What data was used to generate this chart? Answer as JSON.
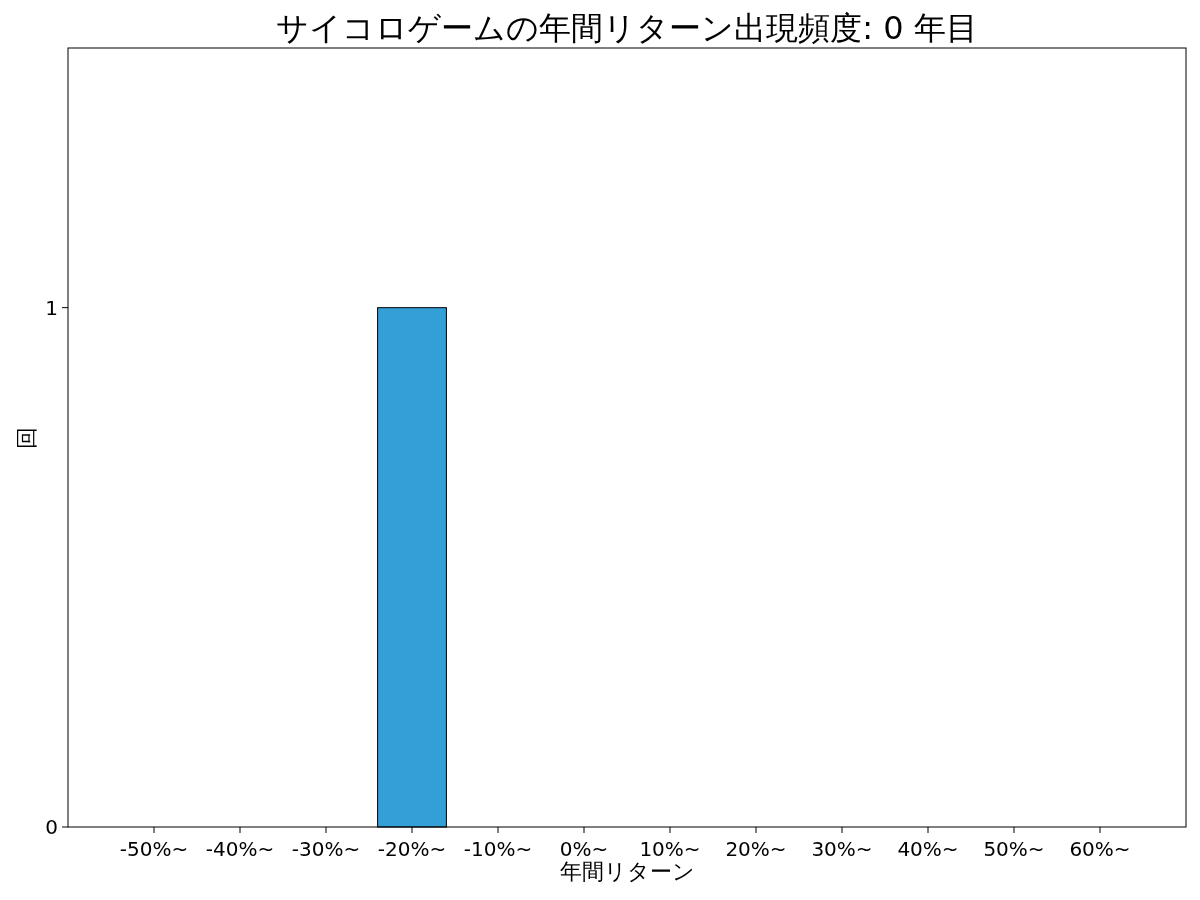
{
  "chart_data": {
    "type": "bar",
    "title": "サイコロゲームの年間リターン出現頻度: 0 年目",
    "xlabel": "年間リターン",
    "ylabel": "回",
    "categories": [
      "-50%~",
      "-40%~",
      "-30%~",
      "-20%~",
      "-10%~",
      "0%~",
      "10%~",
      "20%~",
      "30%~",
      "40%~",
      "50%~",
      "60%~"
    ],
    "values": [
      0,
      0,
      0,
      1,
      0,
      0,
      0,
      0,
      0,
      0,
      0,
      0
    ],
    "color": "#329fd7",
    "ylim": [
      0,
      1.5
    ],
    "yticks": [
      0,
      1
    ],
    "grid": false
  }
}
